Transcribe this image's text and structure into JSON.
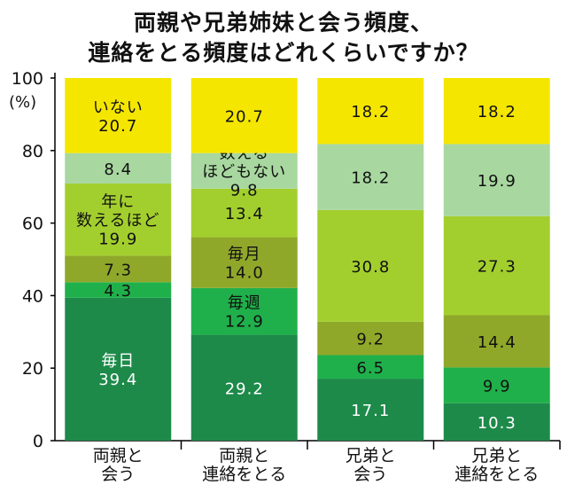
{
  "title_lines": [
    "両親や兄弟姉妹と会う頻度、",
    "連絡をとる頻度はどれくらいですか？"
  ],
  "chart_data": {
    "type": "bar",
    "stacked": true,
    "title": "両親や兄弟姉妹と会う頻度、連絡をとる頻度はどれくらいですか？",
    "ylabel": "(%)",
    "ylim": [
      0,
      100
    ],
    "yticks": [
      0,
      20,
      40,
      60,
      80,
      100
    ],
    "categories": [
      [
        "両親と",
        "会う"
      ],
      [
        "両親と",
        "連絡をとる"
      ],
      [
        "兄弟と",
        "会う"
      ],
      [
        "兄弟と",
        "連絡をとる"
      ]
    ],
    "series": [
      {
        "name": "毎日",
        "color": "#1d8a4a",
        "values": [
          39.4,
          29.2,
          17.1,
          10.3
        ]
      },
      {
        "name": "毎週",
        "color": "#20b04b",
        "values": [
          4.3,
          12.9,
          6.5,
          9.9
        ]
      },
      {
        "name": "毎月",
        "color": "#8fa82a",
        "values": [
          7.3,
          14.0,
          9.2,
          14.4
        ]
      },
      {
        "name": "年に数えるほど",
        "color": "#a3cf2e",
        "values": [
          19.9,
          13.4,
          30.8,
          27.3
        ]
      },
      {
        "name": "数えるほどもない",
        "color": "#a8d8a0",
        "values": [
          8.4,
          9.8,
          18.2,
          19.9
        ]
      },
      {
        "name": "いない",
        "color": "#f5e600",
        "values": [
          20.7,
          20.7,
          18.2,
          18.2
        ]
      }
    ],
    "segment_labels": [
      [
        [
          "毎日",
          "39.4"
        ],
        [
          "4.3"
        ],
        [
          "7.3"
        ],
        [
          "年に",
          "数えるほど",
          "19.9"
        ],
        [
          "8.4"
        ],
        [
          "いない",
          "20.7"
        ]
      ],
      [
        [
          "29.2"
        ],
        [
          "毎週",
          "12.9"
        ],
        [
          "毎月",
          "14.0"
        ],
        [
          "13.4"
        ],
        [
          "数える",
          "ほどもない",
          "9.8"
        ],
        [
          "20.7"
        ]
      ],
      [
        [
          "17.1"
        ],
        [
          "6.5"
        ],
        [
          "9.2"
        ],
        [
          "30.8"
        ],
        [
          "18.2"
        ],
        [
          "18.2"
        ]
      ],
      [
        [
          "10.3"
        ],
        [
          "9.9"
        ],
        [
          "14.4"
        ],
        [
          "27.3"
        ],
        [
          "19.9"
        ],
        [
          "18.2"
        ]
      ]
    ],
    "label_text_colors": [
      [
        "#ffffff",
        "#111111",
        "#111111",
        "#111111",
        "#111111",
        "#111111"
      ],
      [
        "#ffffff",
        "#111111",
        "#111111",
        "#111111",
        "#111111",
        "#111111"
      ],
      [
        "#ffffff",
        "#111111",
        "#111111",
        "#111111",
        "#111111",
        "#111111"
      ],
      [
        "#ffffff",
        "#111111",
        "#111111",
        "#111111",
        "#111111",
        "#111111"
      ]
    ],
    "grid": false
  }
}
